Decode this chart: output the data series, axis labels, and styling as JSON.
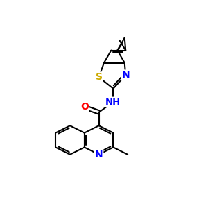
{
  "bg_color": "#ffffff",
  "bond_color": "#000000",
  "bond_width": 1.5,
  "atom_colors": {
    "N": "#0000ff",
    "O": "#ff0000",
    "S": "#ccaa00",
    "C": "#000000"
  }
}
